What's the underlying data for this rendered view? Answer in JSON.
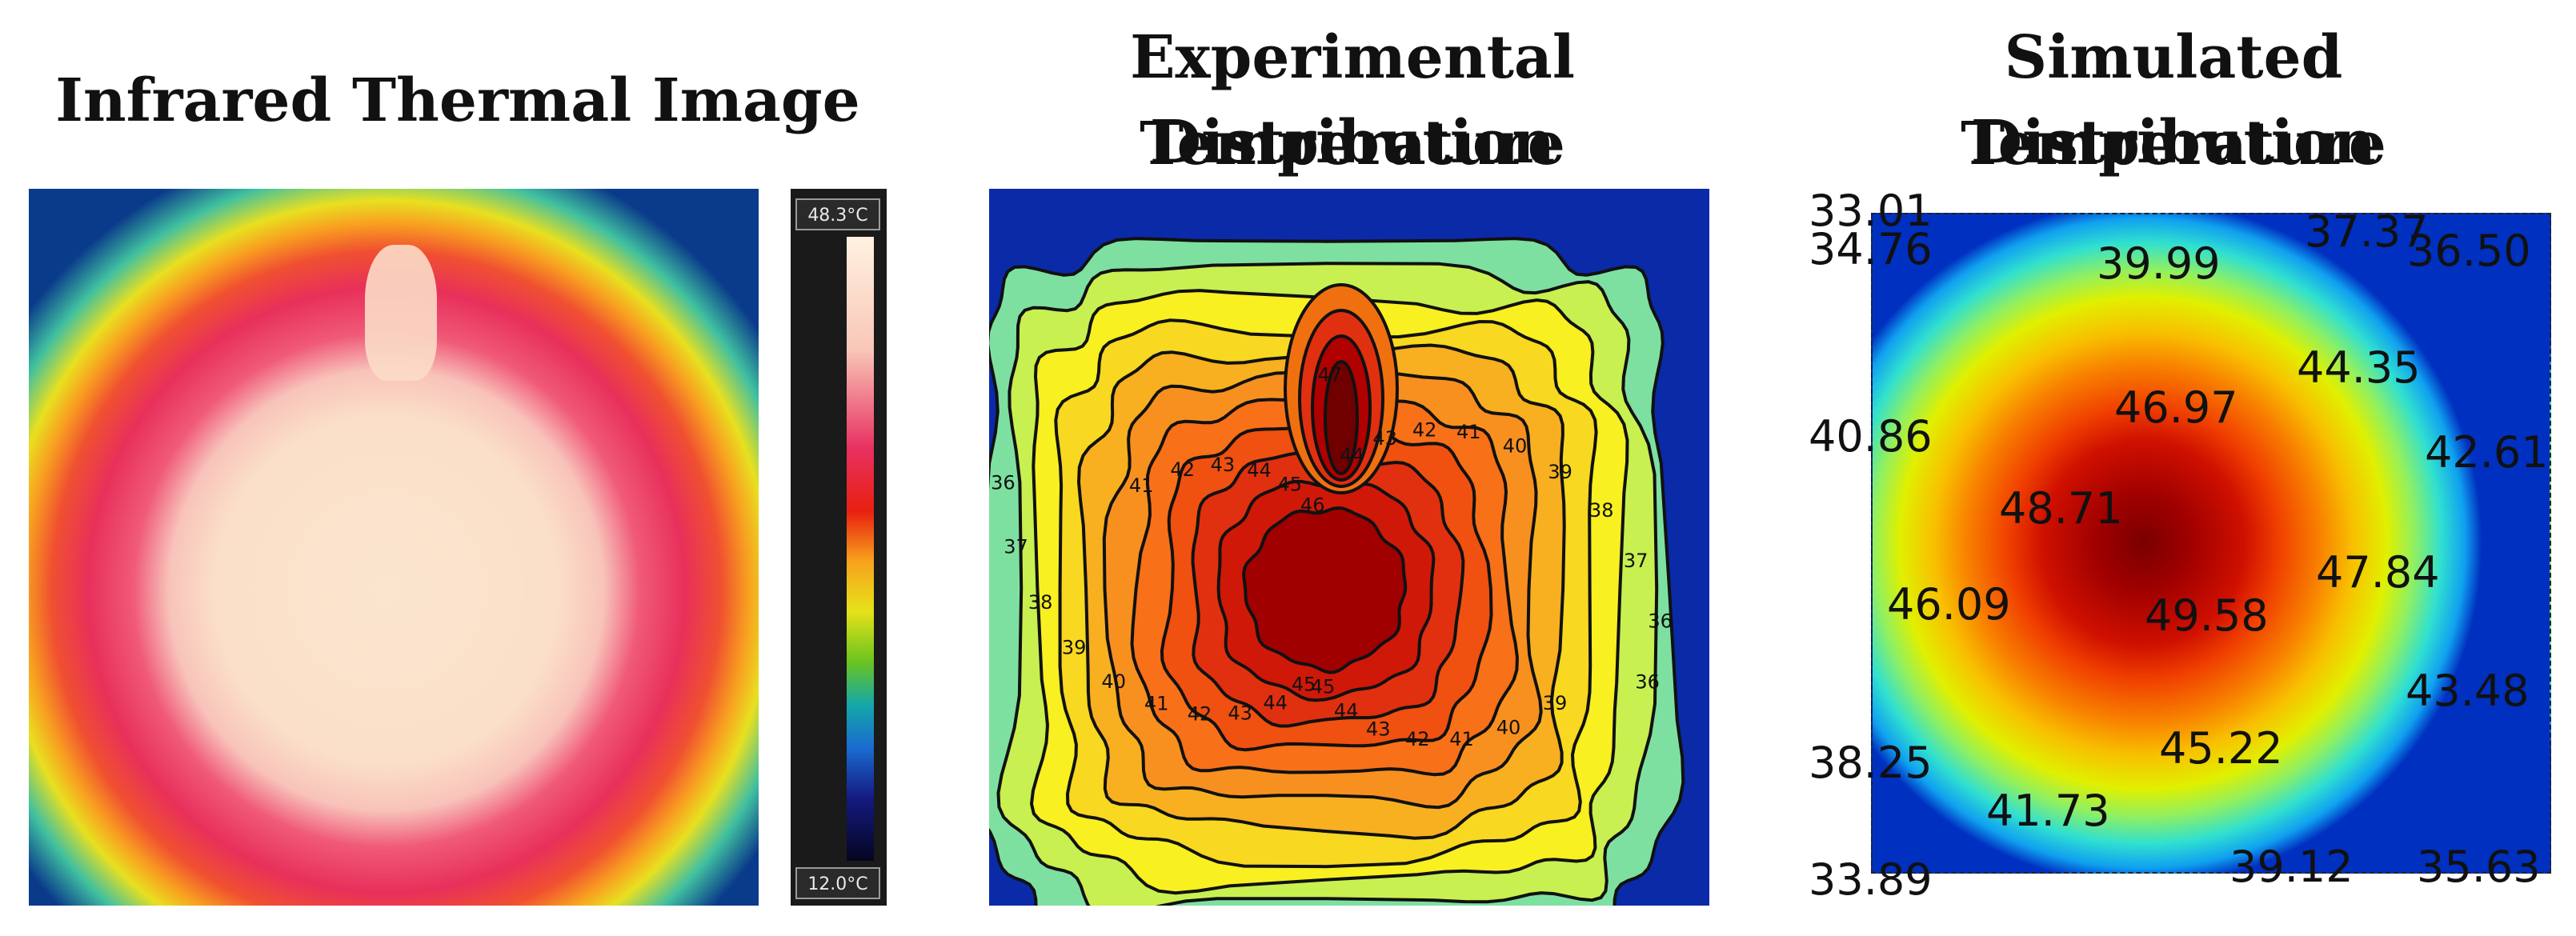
{
  "titles": {
    "thermal": "Infrared Thermal Image",
    "experimental_line1": "Experimental Temperature",
    "experimental_line2": "Distribution",
    "simulated_line1": "Simulated Temperature",
    "simulated_line2": "Distribution"
  },
  "thermal_scale": {
    "max_label": "48.3°C",
    "min_label": "12.0°C"
  },
  "experimental_contours": {
    "levels": [
      "36",
      "37",
      "38",
      "39",
      "40",
      "41",
      "42",
      "43",
      "44",
      "45",
      "46"
    ],
    "inline_labels": [
      "36",
      "39",
      "40",
      "41",
      "42",
      "43",
      "44",
      "45",
      "45",
      "44",
      "43",
      "42",
      "41",
      "40",
      "39",
      "38",
      "37",
      "36",
      "41",
      "42",
      "43",
      "44",
      "45",
      "46",
      "47",
      "44",
      "43",
      "42",
      "41",
      "40",
      "39",
      "38",
      "37",
      "36"
    ]
  },
  "simulated_values": {
    "v1": "33.01",
    "v2": "34.76",
    "v3": "39.99",
    "v4": "37.37",
    "v5": "36.50",
    "v6": "44.35",
    "v7": "46.97",
    "v8": "40.86",
    "v9": "42.61",
    "v10": "48.71",
    "v11": "47.84",
    "v12": "46.09",
    "v13": "49.58",
    "v14": "43.48",
    "v15": "45.22",
    "v16": "38.25",
    "v17": "41.73",
    "v18": "33.89",
    "v19": "39.12",
    "v20": "35.63"
  },
  "colors": {
    "hot": "#c80000",
    "warm": "#f86010",
    "cool": "#f8e020",
    "cold": "#1030c0"
  }
}
